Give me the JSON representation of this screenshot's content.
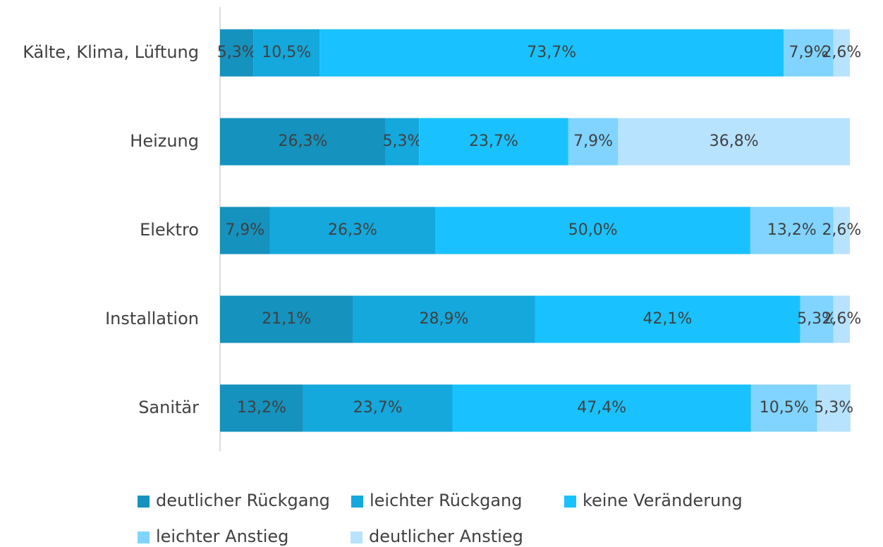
{
  "chart_data": {
    "type": "stacked-barh",
    "categories": [
      "Kälte, Klima, Lüftung",
      "Heizung",
      "Elektro",
      "Installation",
      "Sanitär"
    ],
    "xlim": [
      0,
      100
    ],
    "series": [
      {
        "name": "deutlicher Rückgang",
        "color": "#1592be",
        "values": [
          5.3,
          26.3,
          7.9,
          21.1,
          13.2
        ],
        "value_labels": [
          "5,3%",
          "26,3%",
          "7,9%",
          "21,1%",
          "13,2%"
        ]
      },
      {
        "name": "leichter Rückgang",
        "color": "#14a8dc",
        "values": [
          10.5,
          5.3,
          26.3,
          28.9,
          23.7
        ],
        "value_labels": [
          "10,5%",
          "5,3%",
          "26,3%",
          "28,9%",
          "23,7%"
        ]
      },
      {
        "name": "keine Veränderung",
        "color": "#19c2ff",
        "values": [
          73.7,
          23.7,
          50.0,
          42.1,
          47.4
        ],
        "value_labels": [
          "73,7%",
          "23,7%",
          "50,0%",
          "42,1%",
          "47,4%"
        ]
      },
      {
        "name": "leichter Anstieg",
        "color": "#80d4ff",
        "values": [
          7.9,
          7.9,
          13.2,
          5.3,
          10.5
        ],
        "value_labels": [
          "7,9%",
          "7,9%",
          "13,2%",
          "5,3%",
          "10,5%"
        ]
      },
      {
        "name": "deutlicher Anstieg",
        "color": "#b8e3ff",
        "values": [
          2.6,
          36.8,
          2.6,
          2.6,
          5.3
        ],
        "value_labels": [
          "2,6%",
          "36,8%",
          "2,6%",
          "2,6%",
          "5,3%"
        ]
      }
    ]
  }
}
